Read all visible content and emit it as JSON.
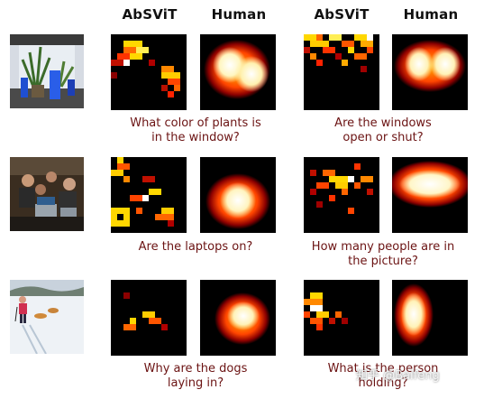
{
  "headers": [
    "AbSViT",
    "Human",
    "AbSViT",
    "Human"
  ],
  "questions": [
    {
      "line1": "What color of plants is",
      "line2": "in the window?"
    },
    {
      "line1": "Are the windows",
      "line2": "open or shut?"
    },
    {
      "line1": "Are the laptops on?",
      "line2": ""
    },
    {
      "line1": "How many people are in",
      "line2": "the picture?"
    },
    {
      "line1": "Why are the dogs",
      "line2": "laying in?"
    },
    {
      "line1": "What is the person",
      "line2": "holding?"
    }
  ],
  "watermark": "知乎 @Baifeng",
  "colors": {
    "question_text": "#6b1313",
    "heat_low": "#8b0000",
    "heat_mid": "#ff4500",
    "heat_high": "#ffd700",
    "heat_max": "#ffffff"
  }
}
